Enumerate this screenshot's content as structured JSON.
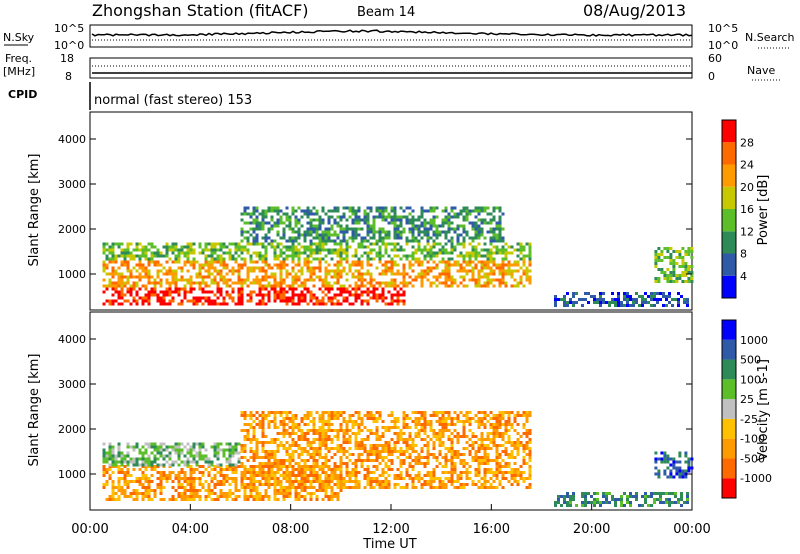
{
  "header": {
    "station": "Zhongshan Station (fitACF)",
    "beam": "Beam 14",
    "date": "08/Aug/2013"
  },
  "noise_panel": {
    "left_label_top": "N.Sky",
    "left_tick_top": "10^5",
    "left_tick_bottom": "10^0",
    "right_tick_top": "10^5",
    "right_tick_bottom": "10^0",
    "right_label": "N.Search"
  },
  "freq_panel": {
    "left_label_line1": "Freq.",
    "left_label_line2": "[MHz]",
    "left_tick_top": "18",
    "left_tick_bottom": "8",
    "right_tick_top": "60",
    "right_tick_bottom": "0",
    "right_label": "Nave"
  },
  "cpid_panel": {
    "label": "CPID",
    "text": "normal (fast stereo) 153"
  },
  "colors": {
    "power": [
      "#0000ff",
      "#2e5aa8",
      "#2e8b57",
      "#5cbf2a",
      "#c8c800",
      "#ff9a00",
      "#ff6a00",
      "#ff0000"
    ],
    "velocity": [
      "#ff0000",
      "#ff6a00",
      "#ff9a00",
      "#ffc000",
      "#c0c0c0",
      "#5cbf2a",
      "#2e8b57",
      "#2e5aa8",
      "#0000ff"
    ]
  },
  "chart_data": [
    {
      "type": "heatmap",
      "name": "power",
      "ylabel": "Slant Range [km]",
      "yticks": [
        "1000",
        "2000",
        "3000",
        "4000"
      ],
      "ylim": [
        200,
        4600
      ],
      "xlim": [
        0,
        24
      ],
      "colorbar_label": "Power [dB]",
      "colorbar_ticks": [
        "4",
        "8",
        "12",
        "16",
        "20",
        "24",
        "28"
      ],
      "regions": [
        {
          "t0": 0.5,
          "t1": 12.5,
          "r0": 350,
          "r1": 700,
          "level": 7
        },
        {
          "t0": 0.5,
          "t1": 17.5,
          "r0": 700,
          "r1": 1300,
          "level": 5
        },
        {
          "t0": 0.5,
          "t1": 17.5,
          "r0": 1300,
          "r1": 1700,
          "level": 3
        },
        {
          "t0": 6.0,
          "t1": 16.5,
          "r0": 1700,
          "r1": 2500,
          "level": 2
        },
        {
          "t0": 18.5,
          "t1": 23.8,
          "r0": 300,
          "r1": 600,
          "level": 1
        },
        {
          "t0": 22.5,
          "t1": 24.0,
          "r0": 800,
          "r1": 1600,
          "level": 3
        }
      ]
    },
    {
      "type": "heatmap",
      "name": "velocity",
      "ylabel": "Slant Range [km]",
      "yticks": [
        "1000",
        "2000",
        "3000",
        "4000"
      ],
      "ylim": [
        200,
        4600
      ],
      "xlim": [
        0,
        24
      ],
      "xticks": [
        "00:00",
        "04:00",
        "08:00",
        "12:00",
        "16:00",
        "20:00",
        "00:00"
      ],
      "xlabel": "Time UT",
      "colorbar_label": "Velocity [m s-1]",
      "colorbar_ticks": [
        "-1000",
        "-500",
        "-100",
        "-25",
        "25",
        "100",
        "500",
        "1000"
      ],
      "regions": [
        {
          "t0": 0.5,
          "t1": 10.0,
          "r0": 400,
          "r1": 1200,
          "level": 2
        },
        {
          "t0": 6.0,
          "t1": 17.5,
          "r0": 700,
          "r1": 2400,
          "level": 2
        },
        {
          "t0": 0.5,
          "t1": 6.0,
          "r0": 1200,
          "r1": 1700,
          "level": 5
        },
        {
          "t0": 18.5,
          "t1": 23.8,
          "r0": 300,
          "r1": 600,
          "level": 6
        },
        {
          "t0": 22.5,
          "t1": 24.0,
          "r0": 900,
          "r1": 1500,
          "level": 7
        }
      ]
    }
  ]
}
